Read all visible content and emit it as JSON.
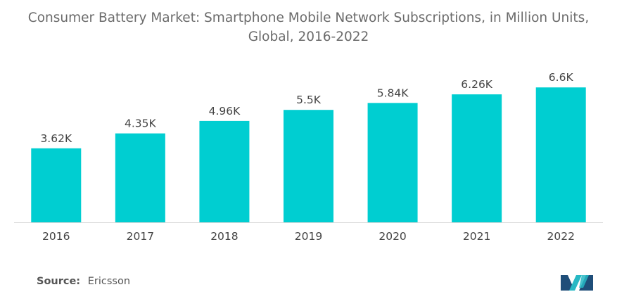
{
  "title_line1": "Consumer Battery Market: Smartphone Mobile Network Subscriptions, in Million Units,",
  "title_line2": "Global, 2016-2022",
  "source_label": "Source:",
  "source_value": "Ericsson",
  "colors": {
    "bar": "#00CED1",
    "axis": "#d9d9d9",
    "text": "#444444",
    "logo_dark": "#1f4e79",
    "logo_teal": "#27b8c4"
  },
  "logo_icon": "mordor-intelligence-logo-icon",
  "chart_data": {
    "type": "bar",
    "title": "Consumer Battery Market: Smartphone Mobile Network Subscriptions, in Million Units, Global, 2016-2022",
    "categories": [
      "2016",
      "2017",
      "2018",
      "2019",
      "2020",
      "2021",
      "2022"
    ],
    "values": [
      3620,
      4350,
      4960,
      5500,
      5840,
      6260,
      6600
    ],
    "data_labels": [
      "3.62K",
      "4.35K",
      "4.96K",
      "5.5K",
      "5.84K",
      "6.26K",
      "6.6K"
    ],
    "xlabel": "",
    "ylabel": "",
    "ylim": [
      0,
      7400
    ],
    "grid": false,
    "legend": "none"
  }
}
